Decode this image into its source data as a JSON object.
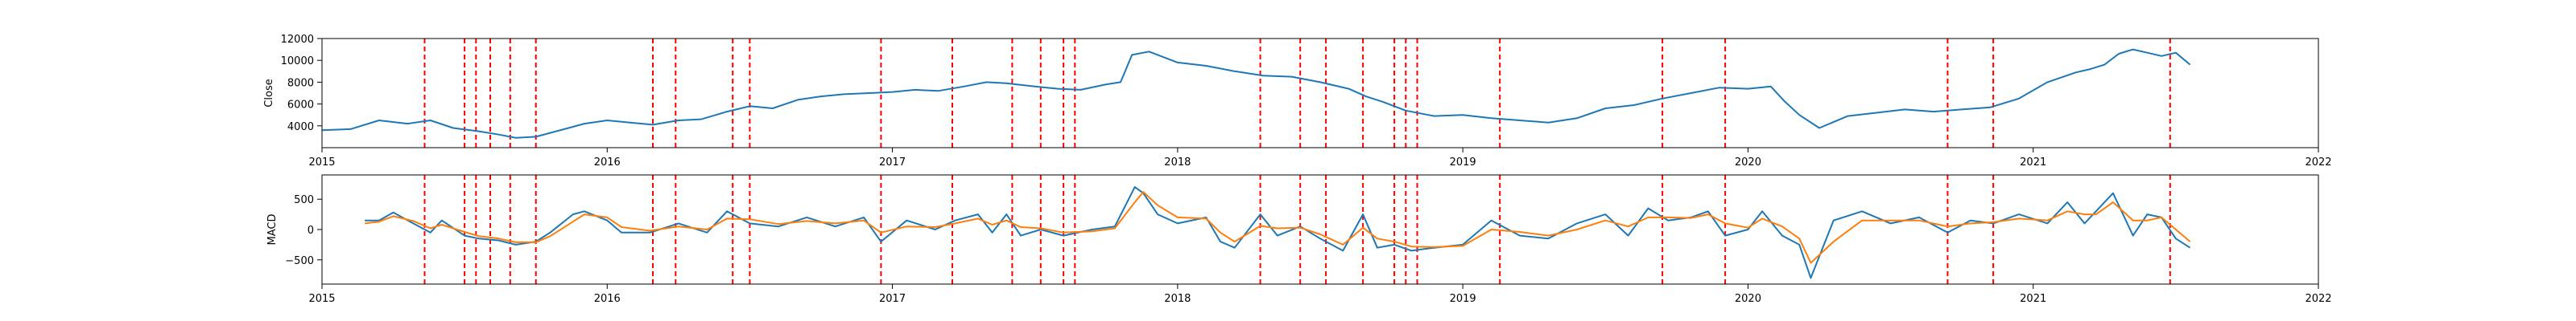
{
  "chart_data": [
    {
      "type": "line",
      "ylabel": "Close",
      "xlim": [
        2015.0,
        2022.0
      ],
      "ylim": [
        2000,
        12000
      ],
      "x_ticks": [
        2015,
        2016,
        2017,
        2018,
        2019,
        2020,
        2021,
        2022
      ],
      "x_tick_labels": [
        "2015",
        "2016",
        "2017",
        "2018",
        "2019",
        "2020",
        "2021",
        "2022"
      ],
      "y_ticks": [
        4000,
        6000,
        8000,
        10000,
        12000
      ],
      "y_tick_labels": [
        "4000",
        "6000",
        "8000",
        "10000",
        "12000"
      ],
      "series": [
        {
          "color": "#1f77b4",
          "x": [
            2015.0,
            2015.1,
            2015.2,
            2015.3,
            2015.38,
            2015.46,
            2015.55,
            2015.62,
            2015.68,
            2015.75,
            2015.85,
            2015.92,
            2016.0,
            2016.08,
            2016.16,
            2016.25,
            2016.33,
            2016.42,
            2016.5,
            2016.58,
            2016.67,
            2016.75,
            2016.83,
            2016.92,
            2017.0,
            2017.08,
            2017.16,
            2017.25,
            2017.33,
            2017.4,
            2017.5,
            2017.58,
            2017.66,
            2017.75,
            2017.8,
            2017.84,
            2017.9,
            2018.0,
            2018.1,
            2018.2,
            2018.3,
            2018.4,
            2018.5,
            2018.6,
            2018.66,
            2018.72,
            2018.8,
            2018.9,
            2019.0,
            2019.1,
            2019.2,
            2019.3,
            2019.4,
            2019.5,
            2019.6,
            2019.7,
            2019.8,
            2019.9,
            2020.0,
            2020.08,
            2020.13,
            2020.18,
            2020.25,
            2020.35,
            2020.45,
            2020.55,
            2020.65,
            2020.75,
            2020.85,
            2020.95,
            2021.05,
            2021.15,
            2021.2,
            2021.25,
            2021.3,
            2021.35,
            2021.4,
            2021.45,
            2021.5,
            2021.55
          ],
          "y": [
            3600,
            3700,
            4500,
            4200,
            4500,
            3800,
            3500,
            3200,
            2900,
            3000,
            3700,
            4200,
            4500,
            4300,
            4100,
            4500,
            4600,
            5300,
            5800,
            5600,
            6400,
            6700,
            6900,
            7000,
            7100,
            7300,
            7200,
            7600,
            8000,
            7900,
            7600,
            7400,
            7300,
            7800,
            8000,
            10500,
            10800,
            9800,
            9500,
            9000,
            8600,
            8500,
            8000,
            7400,
            6700,
            6200,
            5400,
            4900,
            5000,
            4700,
            4500,
            4300,
            4700,
            5600,
            5900,
            6500,
            7000,
            7500,
            7400,
            7600,
            6200,
            5000,
            3800,
            4900,
            5200,
            5500,
            5300,
            5500,
            5700,
            6500,
            8000,
            8900,
            9200,
            9600,
            10600,
            11000,
            10700,
            10400,
            10700,
            9600
          ]
        }
      ],
      "vlines": {
        "color": "#ff0000",
        "x": [
          2015.36,
          2015.5,
          2015.54,
          2015.59,
          2015.66,
          2015.75,
          2016.16,
          2016.24,
          2016.44,
          2016.5,
          2016.96,
          2017.21,
          2017.42,
          2017.52,
          2017.6,
          2017.64,
          2018.29,
          2018.43,
          2018.52,
          2018.65,
          2018.76,
          2018.8,
          2018.84,
          2019.13,
          2019.7,
          2019.92,
          2020.7,
          2020.86,
          2021.48
        ]
      }
    },
    {
      "type": "line",
      "ylabel": "MACD",
      "xlim": [
        2015.0,
        2022.0
      ],
      "ylim": [
        -900,
        900
      ],
      "x_ticks": [
        2015,
        2016,
        2017,
        2018,
        2019,
        2020,
        2021,
        2022
      ],
      "x_tick_labels": [
        "2015",
        "2016",
        "2017",
        "2018",
        "2019",
        "2020",
        "2021",
        "2022"
      ],
      "y_ticks": [
        -500,
        0,
        500
      ],
      "y_tick_labels": [
        "−500",
        "0",
        "500"
      ],
      "series": [
        {
          "color": "#1f77b4",
          "x": [
            2015.15,
            2015.2,
            2015.25,
            2015.32,
            2015.38,
            2015.42,
            2015.5,
            2015.55,
            2015.62,
            2015.68,
            2015.75,
            2015.8,
            2015.88,
            2015.92,
            2016.0,
            2016.05,
            2016.15,
            2016.25,
            2016.35,
            2016.42,
            2016.5,
            2016.6,
            2016.7,
            2016.8,
            2016.9,
            2016.96,
            2017.05,
            2017.15,
            2017.22,
            2017.3,
            2017.35,
            2017.4,
            2017.45,
            2017.52,
            2017.6,
            2017.7,
            2017.78,
            2017.85,
            2017.88,
            2017.93,
            2018.0,
            2018.1,
            2018.15,
            2018.2,
            2018.29,
            2018.35,
            2018.43,
            2018.5,
            2018.58,
            2018.65,
            2018.7,
            2018.76,
            2018.82,
            2018.9,
            2019.0,
            2019.1,
            2019.2,
            2019.3,
            2019.4,
            2019.5,
            2019.58,
            2019.65,
            2019.72,
            2019.8,
            2019.86,
            2019.92,
            2020.0,
            2020.05,
            2020.12,
            2020.18,
            2020.22,
            2020.3,
            2020.4,
            2020.5,
            2020.6,
            2020.7,
            2020.78,
            2020.86,
            2020.95,
            2021.05,
            2021.12,
            2021.18,
            2021.22,
            2021.28,
            2021.35,
            2021.4,
            2021.45,
            2021.5,
            2021.55
          ],
          "y": [
            150,
            150,
            280,
            100,
            -50,
            150,
            -100,
            -150,
            -180,
            -250,
            -200,
            -50,
            250,
            300,
            150,
            -50,
            -50,
            100,
            -50,
            300,
            100,
            50,
            200,
            50,
            200,
            -200,
            150,
            0,
            150,
            250,
            -50,
            250,
            -100,
            0,
            -100,
            0,
            50,
            700,
            600,
            250,
            100,
            200,
            -200,
            -300,
            250,
            -100,
            50,
            -150,
            -350,
            250,
            -300,
            -250,
            -350,
            -300,
            -250,
            150,
            -100,
            -150,
            100,
            250,
            -100,
            350,
            150,
            200,
            300,
            -100,
            0,
            300,
            -100,
            -250,
            -800,
            150,
            300,
            100,
            200,
            -50,
            150,
            100,
            250,
            100,
            450,
            100,
            300,
            600,
            -100,
            250,
            200,
            -150,
            -300
          ]
        },
        {
          "color": "#ff7f0e",
          "x": [
            2015.15,
            2015.2,
            2015.25,
            2015.32,
            2015.38,
            2015.42,
            2015.5,
            2015.55,
            2015.62,
            2015.68,
            2015.75,
            2015.8,
            2015.88,
            2015.92,
            2016.0,
            2016.05,
            2016.15,
            2016.25,
            2016.35,
            2016.42,
            2016.5,
            2016.6,
            2016.7,
            2016.8,
            2016.9,
            2016.96,
            2017.05,
            2017.15,
            2017.22,
            2017.3,
            2017.35,
            2017.4,
            2017.45,
            2017.52,
            2017.6,
            2017.7,
            2017.78,
            2017.85,
            2017.88,
            2017.93,
            2018.0,
            2018.1,
            2018.15,
            2018.2,
            2018.29,
            2018.35,
            2018.43,
            2018.5,
            2018.58,
            2018.65,
            2018.7,
            2018.76,
            2018.82,
            2018.9,
            2019.0,
            2019.1,
            2019.2,
            2019.3,
            2019.4,
            2019.5,
            2019.58,
            2019.65,
            2019.72,
            2019.8,
            2019.86,
            2019.92,
            2020.0,
            2020.05,
            2020.12,
            2020.18,
            2020.22,
            2020.3,
            2020.4,
            2020.5,
            2020.6,
            2020.7,
            2020.78,
            2020.86,
            2020.95,
            2021.05,
            2021.12,
            2021.18,
            2021.22,
            2021.28,
            2021.35,
            2021.4,
            2021.45,
            2021.5,
            2021.55
          ],
          "y": [
            100,
            130,
            220,
            140,
            20,
            80,
            -40,
            -110,
            -150,
            -210,
            -210,
            -110,
            130,
            250,
            200,
            40,
            -20,
            50,
            0,
            180,
            170,
            90,
            140,
            100,
            150,
            -50,
            50,
            40,
            100,
            180,
            80,
            150,
            40,
            20,
            -50,
            -30,
            20,
            450,
            620,
            400,
            200,
            180,
            -50,
            -200,
            60,
            20,
            30,
            -80,
            -250,
            30,
            -150,
            -200,
            -280,
            -290,
            -270,
            0,
            -40,
            -100,
            0,
            150,
            50,
            200,
            200,
            190,
            250,
            100,
            30,
            180,
            50,
            -150,
            -550,
            -200,
            150,
            150,
            150,
            50,
            100,
            120,
            180,
            150,
            300,
            250,
            250,
            450,
            150,
            150,
            200,
            0,
            -200
          ]
        }
      ],
      "vlines": {
        "color": "#ff0000",
        "x": [
          2015.36,
          2015.5,
          2015.54,
          2015.59,
          2015.66,
          2015.75,
          2016.16,
          2016.24,
          2016.44,
          2016.5,
          2016.96,
          2017.21,
          2017.42,
          2017.52,
          2017.6,
          2017.64,
          2018.29,
          2018.43,
          2018.52,
          2018.65,
          2018.76,
          2018.8,
          2018.84,
          2019.13,
          2019.7,
          2019.92,
          2020.7,
          2020.86,
          2021.48
        ]
      }
    }
  ]
}
